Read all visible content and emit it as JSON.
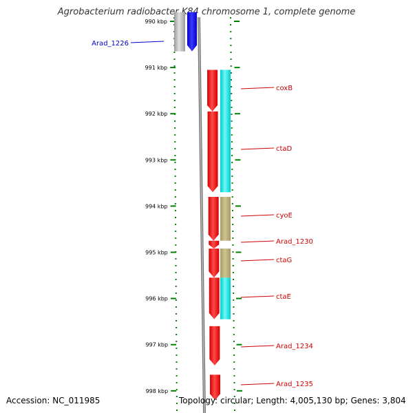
{
  "title": "Agrobacterium radiobacter K84 chromosome 1, complete genome",
  "accession": "Accession: NC_011985",
  "topology": "Topology: circular; Length: 4,005,130 bp; Genes: 3,804",
  "scale": {
    "ticks": [
      {
        "label": "990 kbp",
        "kbp": 990
      },
      {
        "label": "991 kbp",
        "kbp": 991
      },
      {
        "label": "992 kbp",
        "kbp": 992
      },
      {
        "label": "993 kbp",
        "kbp": 993
      },
      {
        "label": "994 kbp",
        "kbp": 994
      },
      {
        "label": "995 kbp",
        "kbp": 995
      },
      {
        "label": "996 kbp",
        "kbp": 996
      },
      {
        "label": "997 kbp",
        "kbp": 997
      },
      {
        "label": "998 kbp",
        "kbp": 998
      }
    ]
  },
  "colors": {
    "gene": "#ff0000",
    "selected_gene": "#0000ff",
    "cyan_feature": "#00e8e8",
    "olive_feature": "#b7ab73",
    "backbone": "#808080",
    "tick": "#008000",
    "label_red": "#cc0000",
    "label_blue": "#0000cc"
  },
  "genes": [
    {
      "name": "Arad_1226",
      "start": 989.8,
      "end": 990.65,
      "strand": "-",
      "color": "blue",
      "labeled": true
    },
    {
      "name": "coxB",
      "start": 991.05,
      "end": 991.95,
      "strand": "-",
      "color": "red",
      "labeled": true
    },
    {
      "name": "ctaD",
      "start": 991.95,
      "end": 993.7,
      "strand": "-",
      "color": "red",
      "labeled": true
    },
    {
      "name": "cyoE",
      "start": 993.8,
      "end": 994.75,
      "strand": "-",
      "color": "red",
      "labeled": true
    },
    {
      "name": "Arad_1230",
      "start": 994.75,
      "end": 994.92,
      "strand": "-",
      "color": "red",
      "labeled": true
    },
    {
      "name": "ctaG",
      "start": 994.92,
      "end": 995.55,
      "strand": "-",
      "color": "red",
      "labeled": true
    },
    {
      "name": "ctaE",
      "start": 995.55,
      "end": 996.45,
      "strand": "-",
      "color": "red",
      "labeled": true
    },
    {
      "name": "Arad_1234",
      "start": 996.6,
      "end": 997.45,
      "strand": "-",
      "color": "red",
      "labeled": true
    },
    {
      "name": "Arad_1235",
      "start": 997.65,
      "end": 998.2,
      "strand": "-",
      "color": "red",
      "labeled": true
    }
  ],
  "features": [
    {
      "start": 989.8,
      "end": 990.65,
      "color": "gray"
    },
    {
      "start": 991.05,
      "end": 993.7,
      "color": "cyan"
    },
    {
      "start": 993.8,
      "end": 994.75,
      "color": "olive"
    },
    {
      "start": 994.92,
      "end": 995.55,
      "color": "olive"
    },
    {
      "start": 995.55,
      "end": 996.45,
      "color": "cyan"
    }
  ]
}
